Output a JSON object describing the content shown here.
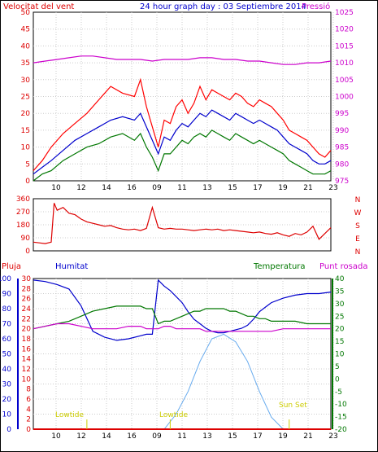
{
  "header": {
    "wind_label": "Velocitat del vent",
    "title": "24 hour graph day : 03 Septiembre 2014",
    "pressure_label": "Pressió"
  },
  "lower_labels": {
    "rain": "Pluja",
    "humidity": "Humitat",
    "temperature": "Temperatura",
    "dewpoint": "Punt rosada"
  },
  "direction_labels": [
    "N",
    "W",
    "S",
    "E",
    "N"
  ],
  "annotations": {
    "lowtide_1": "Lowtide",
    "lowtide_2": "Lowtide",
    "sunset": "Sun Set",
    "sunrise": "Sun Set",
    "bottom_mid": "Lowtide"
  },
  "colors": {
    "wind_gust": "#ff0000",
    "wind_avg": "#0000cc",
    "wind_low": "#007700",
    "pressure": "#cc00cc",
    "direction": "#dd0000",
    "humidity": "#0000cc",
    "temperature": "#007700",
    "dewpoint": "#cc00cc",
    "rain": "#dd0000",
    "solar": "#66aaee",
    "tide": "#dddd00"
  },
  "chart_data": [
    {
      "type": "line",
      "name": "wind-and-pressure",
      "x_ticks": [
        "10",
        "12",
        "14",
        "16",
        "09",
        "11",
        "13",
        "15",
        "17",
        "19",
        "21",
        "23"
      ],
      "y_left_ticks": [
        0,
        5,
        10,
        15,
        20,
        25,
        30,
        35,
        40,
        45,
        50
      ],
      "y_left_range": [
        0,
        50
      ],
      "y_right_ticks": [
        975,
        980,
        985,
        990,
        995,
        1000,
        1005,
        1010,
        1015,
        1020,
        1025
      ],
      "y_right_range": [
        975,
        1025
      ],
      "x_range": [
        0,
        100
      ],
      "series": [
        {
          "name": "Velocitat del vent",
          "x": [
            0,
            3,
            6,
            10,
            14,
            18,
            22,
            26,
            30,
            34,
            36,
            38,
            40,
            42,
            44,
            46,
            48,
            50,
            52,
            54,
            56,
            58,
            60,
            62,
            64,
            66,
            68,
            70,
            72,
            74,
            76,
            78,
            80,
            82,
            84,
            86,
            88,
            90,
            92,
            94,
            96,
            98,
            100
          ],
          "values": [
            3,
            6,
            10,
            14,
            17,
            20,
            24,
            28,
            26,
            25,
            30,
            22,
            16,
            10,
            18,
            17,
            22,
            24,
            20,
            23,
            28,
            24,
            27,
            26,
            25,
            24,
            26,
            25,
            23,
            22,
            24,
            23,
            22,
            20,
            18,
            15,
            14,
            13,
            12,
            10,
            8,
            7,
            9
          ]
        },
        {
          "name": "Velocitat del vent",
          "x": [
            0,
            3,
            6,
            10,
            14,
            18,
            22,
            26,
            30,
            34,
            36,
            38,
            40,
            42,
            44,
            46,
            48,
            50,
            52,
            54,
            56,
            58,
            60,
            62,
            64,
            66,
            68,
            70,
            72,
            74,
            76,
            78,
            80,
            82,
            84,
            86,
            88,
            90,
            92,
            94,
            96,
            98,
            100
          ],
          "values": [
            2,
            4,
            6,
            9,
            12,
            14,
            16,
            18,
            19,
            18,
            20,
            16,
            12,
            8,
            13,
            12,
            15,
            17,
            16,
            18,
            20,
            19,
            21,
            20,
            19,
            18,
            20,
            19,
            18,
            17,
            18,
            17,
            16,
            15,
            13,
            11,
            10,
            9,
            8,
            6,
            5,
            5,
            6
          ]
        },
        {
          "name": "Velocitat del vent",
          "x": [
            0,
            3,
            6,
            10,
            14,
            18,
            22,
            26,
            30,
            34,
            36,
            38,
            40,
            42,
            44,
            46,
            48,
            50,
            52,
            54,
            56,
            58,
            60,
            62,
            64,
            66,
            68,
            70,
            72,
            74,
            76,
            78,
            80,
            82,
            84,
            86,
            88,
            90,
            92,
            94,
            96,
            98,
            100
          ],
          "values": [
            0,
            2,
            3,
            6,
            8,
            10,
            11,
            13,
            14,
            12,
            14,
            10,
            7,
            3,
            8,
            8,
            10,
            12,
            11,
            13,
            14,
            13,
            15,
            14,
            13,
            12,
            14,
            13,
            12,
            11,
            12,
            11,
            10,
            9,
            8,
            6,
            5,
            4,
            3,
            2,
            2,
            2,
            3
          ]
        },
        {
          "name": "Pressió",
          "x": [
            0,
            4,
            8,
            12,
            16,
            20,
            24,
            28,
            32,
            36,
            40,
            44,
            48,
            52,
            56,
            60,
            64,
            68,
            72,
            76,
            80,
            84,
            88,
            92,
            96,
            100
          ],
          "values": [
            1010,
            1010.5,
            1011,
            1011.5,
            1012,
            1012,
            1011.5,
            1011,
            1011,
            1011,
            1010.5,
            1011,
            1011,
            1011,
            1011.5,
            1011.5,
            1011,
            1011,
            1010.5,
            1010.5,
            1010,
            1009.5,
            1009.5,
            1010,
            1010,
            1010.5
          ]
        }
      ]
    },
    {
      "type": "line",
      "name": "wind-direction",
      "y_ticks": [
        0,
        90,
        180,
        270,
        360
      ],
      "y_range": [
        0,
        360
      ],
      "x_range": [
        0,
        100
      ],
      "series": [
        {
          "name": "direction",
          "x": [
            0,
            2,
            4,
            6,
            7,
            8,
            10,
            12,
            14,
            16,
            18,
            20,
            22,
            24,
            26,
            28,
            30,
            32,
            34,
            36,
            38,
            40,
            42,
            44,
            46,
            48,
            50,
            52,
            54,
            56,
            58,
            60,
            62,
            64,
            66,
            68,
            70,
            72,
            74,
            76,
            78,
            80,
            82,
            84,
            86,
            88,
            90,
            92,
            94,
            96,
            98,
            100
          ],
          "values": [
            60,
            55,
            50,
            60,
            330,
            280,
            300,
            260,
            250,
            220,
            200,
            190,
            180,
            170,
            175,
            160,
            150,
            145,
            150,
            140,
            155,
            300,
            160,
            150,
            155,
            150,
            150,
            145,
            140,
            145,
            150,
            145,
            150,
            140,
            145,
            140,
            135,
            130,
            125,
            130,
            120,
            115,
            125,
            110,
            100,
            120,
            110,
            130,
            170,
            80,
            120,
            160
          ]
        }
      ]
    },
    {
      "type": "line",
      "name": "humidity-temperature",
      "y_left_ticks": [
        0,
        10,
        20,
        30,
        40,
        50,
        60,
        70,
        80,
        90,
        100
      ],
      "y_left_range": [
        0,
        100
      ],
      "y_rain_ticks": [
        0,
        2,
        4,
        6,
        8,
        10,
        12,
        14,
        16,
        18,
        20,
        22,
        24,
        26,
        28,
        30
      ],
      "y_right_ticks": [
        -20,
        -15,
        -10,
        -5,
        0,
        5,
        10,
        15,
        20,
        25,
        30,
        35,
        40
      ],
      "y_right_range": [
        -20,
        40
      ],
      "x_range": [
        0,
        100
      ],
      "series": [
        {
          "name": "Humitat",
          "x": [
            0,
            4,
            8,
            12,
            16,
            20,
            24,
            28,
            32,
            36,
            38,
            40,
            42,
            44,
            46,
            48,
            50,
            52,
            54,
            56,
            58,
            60,
            62,
            64,
            66,
            68,
            70,
            72,
            74,
            76,
            78,
            80,
            84,
            88,
            92,
            96,
            100
          ],
          "values": [
            99,
            98,
            96,
            93,
            82,
            65,
            61,
            59,
            60,
            62,
            63,
            63,
            99,
            95,
            92,
            88,
            84,
            78,
            73,
            70,
            67,
            65,
            64,
            64,
            65,
            66,
            67,
            69,
            73,
            78,
            81,
            84,
            87,
            89,
            90,
            90,
            91
          ]
        },
        {
          "name": "Temperatura",
          "x": [
            0,
            4,
            8,
            12,
            16,
            20,
            24,
            28,
            32,
            36,
            38,
            40,
            42,
            44,
            46,
            48,
            50,
            52,
            54,
            56,
            58,
            60,
            62,
            64,
            66,
            68,
            70,
            72,
            74,
            76,
            78,
            80,
            84,
            88,
            92,
            96,
            100
          ],
          "values": [
            20,
            21,
            22,
            23,
            25,
            27,
            28,
            29,
            29,
            29,
            28,
            28,
            22,
            23,
            23,
            24,
            25,
            26,
            27,
            27,
            28,
            28,
            28,
            28,
            27,
            27,
            26,
            25,
            25,
            24,
            24,
            23,
            23,
            23,
            22,
            22,
            22
          ]
        },
        {
          "name": "Punt rosada",
          "x": [
            0,
            4,
            8,
            12,
            16,
            20,
            24,
            28,
            32,
            36,
            38,
            40,
            42,
            44,
            46,
            48,
            50,
            52,
            54,
            56,
            58,
            60,
            62,
            64,
            66,
            68,
            70,
            72,
            74,
            76,
            78,
            80,
            84,
            88,
            92,
            96,
            100
          ],
          "values": [
            20,
            21,
            22,
            22,
            21,
            20,
            20,
            20,
            21,
            21,
            20,
            20,
            20,
            21,
            21,
            20,
            20,
            20,
            20,
            20,
            19,
            19,
            19,
            19,
            19,
            19,
            19,
            19,
            19,
            19,
            19,
            19,
            20,
            20,
            20,
            20,
            20
          ]
        },
        {
          "name": "Solar",
          "x": [
            0,
            10,
            20,
            30,
            40,
            44,
            48,
            52,
            56,
            60,
            64,
            68,
            72,
            76,
            80,
            84,
            88,
            92,
            100
          ],
          "values": [
            0,
            0,
            0,
            0,
            0,
            0,
            10,
            25,
            45,
            60,
            63,
            58,
            45,
            25,
            8,
            0,
            0,
            0,
            0
          ]
        },
        {
          "name": "Pluja",
          "x": [
            0,
            100
          ],
          "values": [
            0,
            0
          ]
        }
      ],
      "x_ticks": [
        "10",
        "12",
        "14",
        "16",
        "09",
        "11",
        "13",
        "15",
        "17",
        "19",
        "21",
        "23"
      ]
    }
  ]
}
